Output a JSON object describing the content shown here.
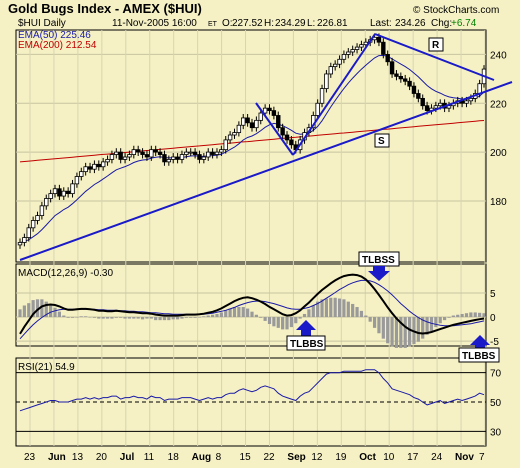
{
  "chart_data": [
    {
      "type": "candlestick",
      "title": "Gold Bugs Index - AMEX ($HUI)",
      "date": "11-Nov-2005 16:00",
      "date_tz": "ET",
      "quote": {
        "open_label": "O:",
        "open": "227.52",
        "high_label": "H:",
        "high": "234.29",
        "low_label": "L:",
        "low": "226.81",
        "last_label": "Last:",
        "last": "234.26",
        "chg_label": "Chg:",
        "chg": "+6.74"
      },
      "copyright": "© StockCharts.com",
      "legend": [
        {
          "name": "$HUI Daily",
          "color": "#000000"
        },
        {
          "name": "EMA(50) 225.46",
          "color": "#1a1aa8"
        },
        {
          "name": "EMA(200) 212.54",
          "color": "#c00000"
        }
      ],
      "ylim": [
        155,
        250
      ],
      "y_ticks": [
        180,
        200,
        220,
        240
      ],
      "grid": true,
      "annotations": [
        {
          "label": "R",
          "kind": "resistance"
        },
        {
          "label": "S",
          "kind": "support"
        }
      ],
      "x_labels": [
        "23",
        "Jun",
        "13",
        "20",
        "Jul",
        "11",
        "18",
        "Aug",
        "8",
        "15",
        "22",
        "Sep",
        "12",
        "19",
        "Oct",
        "10",
        "17",
        "24",
        "Nov",
        "7"
      ],
      "close": [
        163,
        165,
        169,
        172,
        174,
        178,
        181,
        183,
        185,
        182,
        184,
        183,
        187,
        190,
        192,
        194,
        193,
        195,
        194,
        196,
        197,
        199,
        200,
        197,
        198,
        199,
        201,
        200,
        199,
        198,
        201,
        200,
        199,
        196,
        197,
        198,
        197,
        199,
        200,
        200,
        199,
        197,
        198,
        200,
        199,
        200,
        201,
        205,
        207,
        208,
        211,
        214,
        212,
        210,
        213,
        216,
        218,
        217,
        215,
        210,
        207,
        205,
        203,
        201,
        205,
        208,
        210,
        215,
        220,
        226,
        232,
        235,
        236,
        238,
        240,
        241,
        242,
        243,
        244,
        245,
        246,
        247,
        245,
        240,
        237,
        232,
        231,
        230,
        229,
        227,
        224,
        222,
        219,
        217,
        218,
        219,
        220,
        218,
        219,
        220,
        221,
        220,
        221,
        222,
        224,
        228,
        234
      ]
    },
    {
      "type": "line",
      "title": "MACD(12,26,9) -0.30",
      "ylim": [
        -6,
        11
      ],
      "y_ticks": [
        -5,
        0,
        5
      ],
      "annotations": [
        {
          "label": "TLBSS",
          "direction": "down"
        },
        {
          "label": "TLBBS",
          "direction": "up"
        },
        {
          "label": "TLBBS",
          "direction": "up"
        }
      ],
      "macd": [
        -3.5,
        -2.0,
        -0.7,
        0.6,
        1.5,
        2.2,
        2.5,
        2.6,
        2.5,
        2.2,
        1.8,
        1.5,
        1.5,
        1.6,
        1.7,
        1.7,
        1.6,
        1.5,
        1.3,
        1.3,
        1.2,
        1.2,
        1.3,
        1.2,
        1.1,
        1.0,
        1.0,
        0.9,
        0.8,
        0.8,
        0.7,
        0.5,
        0.4,
        0.3,
        0.3,
        0.3,
        0.3,
        0.4,
        0.5,
        0.5,
        0.5,
        0.6,
        0.7,
        0.9,
        1.1,
        1.4,
        1.8,
        2.3,
        2.8,
        3.3,
        3.7,
        4.0,
        4.1,
        3.9,
        3.6,
        3.2,
        2.7,
        2.1,
        1.6,
        1.1,
        0.6,
        0.3,
        0.4,
        0.8,
        1.4,
        2.2,
        3.0,
        3.9,
        4.8,
        5.6,
        6.3,
        7.0,
        7.6,
        8.1,
        8.5,
        8.7,
        8.8,
        8.7,
        8.4,
        7.8,
        6.9,
        5.8,
        4.6,
        3.3,
        2.0,
        0.8,
        -0.3,
        -1.2,
        -2.0,
        -2.6,
        -3.0,
        -3.3,
        -3.4,
        -3.3,
        -3.1,
        -2.8,
        -2.5,
        -2.2,
        -1.9,
        -1.6,
        -1.4,
        -1.2,
        -1.0,
        -0.8,
        -0.6,
        -0.45,
        -0.3
      ],
      "signal": [
        -4.5,
        -3.5,
        -2.5,
        -1.6,
        -0.8,
        -0.1,
        0.5,
        1.0,
        1.3,
        1.5,
        1.6,
        1.6,
        1.6,
        1.6,
        1.6,
        1.6,
        1.6,
        1.6,
        1.5,
        1.5,
        1.4,
        1.4,
        1.4,
        1.3,
        1.3,
        1.2,
        1.2,
        1.1,
        1.1,
        1.0,
        0.9,
        0.9,
        0.8,
        0.7,
        0.7,
        0.6,
        0.6,
        0.6,
        0.6,
        0.6,
        0.6,
        0.6,
        0.6,
        0.7,
        0.8,
        1.0,
        1.2,
        1.4,
        1.7,
        2.0,
        2.4,
        2.7,
        3.0,
        3.2,
        3.3,
        3.3,
        3.2,
        3.0,
        2.8,
        2.5,
        2.2,
        1.9,
        1.7,
        1.6,
        1.6,
        1.8,
        2.0,
        2.4,
        2.8,
        3.3,
        3.9,
        4.5,
        5.1,
        5.7,
        6.2,
        6.7,
        7.1,
        7.4,
        7.6,
        7.6,
        7.5,
        7.2,
        6.7,
        6.1,
        5.4,
        4.6,
        3.7,
        2.8,
        2.0,
        1.2,
        0.5,
        -0.1,
        -0.6,
        -1.0,
        -1.3,
        -1.5,
        -1.7,
        -1.8,
        -1.8,
        -1.8,
        -1.7,
        -1.6,
        -1.5,
        -1.4,
        -1.2,
        -1.0,
        -0.8
      ]
    },
    {
      "type": "line",
      "title": "RSI(21) 54.9",
      "ylim": [
        20,
        80
      ],
      "y_ticks": [
        30,
        50,
        70
      ],
      "reference_lines": [
        30,
        50,
        70
      ],
      "values": [
        44,
        45,
        46,
        47,
        48,
        49,
        50,
        51,
        51,
        50,
        50,
        50,
        51,
        52,
        52,
        53,
        52,
        53,
        52,
        53,
        53,
        54,
        54,
        52,
        53,
        53,
        54,
        53,
        53,
        52,
        54,
        53,
        53,
        51,
        52,
        52,
        52,
        53,
        53,
        53,
        52,
        51,
        52,
        53,
        52,
        53,
        53,
        55,
        56,
        56,
        58,
        59,
        58,
        57,
        58,
        60,
        61,
        60,
        59,
        56,
        54,
        53,
        52,
        51,
        54,
        56,
        57,
        60,
        63,
        66,
        69,
        70,
        70,
        70,
        71,
        71,
        71,
        71,
        71,
        72,
        72,
        72,
        70,
        66,
        63,
        59,
        58,
        57,
        56,
        55,
        53,
        52,
        50,
        48,
        49,
        50,
        51,
        49,
        50,
        51,
        52,
        51,
        52,
        53,
        54,
        56,
        55
      ]
    }
  ]
}
